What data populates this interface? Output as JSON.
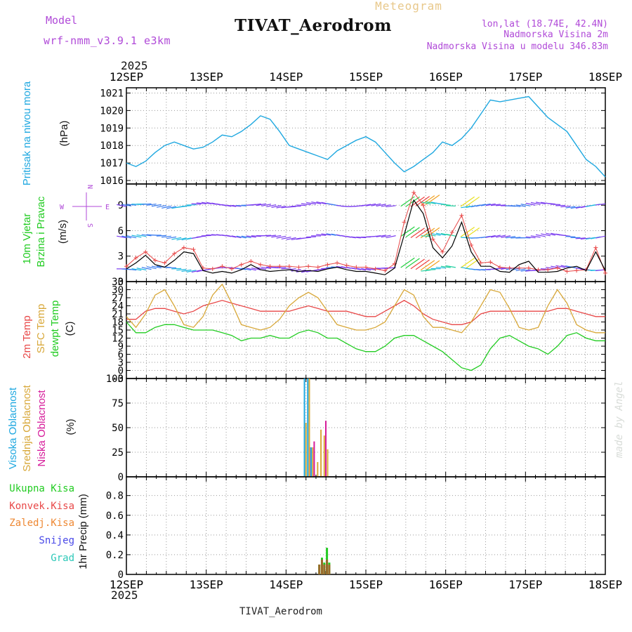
{
  "header": {
    "model_label": "Model",
    "model_name": "wrf-nmm_v3.9.1 e3km",
    "product": "Meteogram",
    "station": "TIVAT_Aerodrom",
    "lonlat": "lon,lat (18.74E, 42.4N)",
    "elevation": "Nadmorska Visina 2m",
    "model_elevation": "Nadmorska Visina u modelu 346.83m",
    "year": "2025",
    "footer_station": "TIVAT_Aerodrom",
    "credit": "made by Angel"
  },
  "colors": {
    "pressure": "#1fa8e0",
    "temp2m": "#e84848",
    "sfc_temp": "#d8a83a",
    "dewpt": "#22cc22",
    "wind_speed": "#000000",
    "gust": "#e84848",
    "cloud_high": "#1fa8e0",
    "cloud_mid": "#d8a83a",
    "cloud_low": "#d61c9a",
    "precip_total": "#22cc22",
    "precip_conv": "#e84848",
    "precip_frozen": "#ee8833",
    "snow": "#4848e8",
    "graupel": "#2cc8b8",
    "model_text": "#b04ad8"
  },
  "chart_data": {
    "type": "line",
    "x_axis": {
      "ticks": [
        "12SEP",
        "13SEP",
        "14SEP",
        "15SEP",
        "16SEP",
        "17SEP",
        "18SEP"
      ],
      "range_hours": [
        0,
        144
      ],
      "step_hours": 3
    },
    "panels": [
      {
        "id": "pressure",
        "ylabel_lines": [
          "Pritisak na nivou mora",
          "(hPa)"
        ],
        "ylim": [
          1015.8,
          1021.3
        ],
        "yticks": [
          1016,
          1017,
          1018,
          1019,
          1020,
          1021
        ],
        "series": [
          {
            "name": "Pritisak na nivou mora",
            "values": [
              1017.0,
              1016.8,
              1017.1,
              1017.6,
              1018.0,
              1018.2,
              1018.0,
              1017.8,
              1017.9,
              1018.2,
              1018.6,
              1018.5,
              1018.8,
              1019.2,
              1019.7,
              1019.5,
              1018.8,
              1018.0,
              1017.8,
              1017.6,
              1017.4,
              1017.2,
              1017.7,
              1018.0,
              1018.3,
              1018.5,
              1018.2,
              1017.6,
              1017.0,
              1016.5,
              1016.8,
              1017.2,
              1017.6,
              1018.2,
              1018.0,
              1018.4,
              1019.0,
              1019.8,
              1020.6,
              1020.5,
              1020.6,
              1020.7,
              1020.8,
              1020.2,
              1019.6,
              1019.2,
              1018.8,
              1018.0,
              1017.2,
              1016.8,
              1016.2
            ]
          }
        ]
      },
      {
        "id": "wind",
        "ylabel_lines": [
          "10m Vjetar",
          "Brzina i Pravac",
          "(m/s)"
        ],
        "compass": [
          "N",
          "E",
          "S",
          "W"
        ],
        "ylim": [
          0,
          11.5
        ],
        "yticks": [
          0,
          3,
          6,
          9
        ],
        "series": [
          {
            "name": "Brzina",
            "values": [
              1.5,
              2.2,
              3.1,
              2.0,
              1.7,
              2.5,
              3.5,
              3.3,
              1.3,
              1.0,
              1.2,
              1.0,
              1.4,
              2.0,
              1.4,
              1.2,
              1.3,
              1.4,
              1.2,
              1.3,
              1.2,
              1.5,
              1.7,
              1.4,
              1.2,
              1.2,
              1.0,
              0.8,
              1.6,
              5.5,
              9.6,
              8.0,
              4.0,
              2.8,
              4.2,
              7.0,
              3.5,
              1.8,
              1.8,
              1.2,
              1.1,
              2.0,
              2.4,
              1.1,
              1.1,
              1.2,
              1.6,
              1.8,
              1.3,
              3.5,
              1.3
            ]
          },
          {
            "name": "Udar",
            "values": [
              1.8,
              2.8,
              3.5,
              2.5,
              2.2,
              3.3,
              4.0,
              3.8,
              1.6,
              1.5,
              1.8,
              1.5,
              2.0,
              2.4,
              2.0,
              1.8,
              1.8,
              1.8,
              1.7,
              1.8,
              1.7,
              2.0,
              2.2,
              1.9,
              1.7,
              1.7,
              1.5,
              1.3,
              2.1,
              7.0,
              10.5,
              9.0,
              5.0,
              3.5,
              5.8,
              7.8,
              4.3,
              2.2,
              2.3,
              1.7,
              1.6,
              1.6,
              1.6,
              1.4,
              1.4,
              1.6,
              1.2,
              1.3,
              1.4,
              4.0,
              1.0
            ]
          }
        ],
        "barb_rows_ms": [
          1.5,
          5.3,
          9.0
        ]
      },
      {
        "id": "temperature",
        "ylabel_lines": [
          "2m Temp",
          "SFC Temp",
          "dewpt Temp",
          "(C)"
        ],
        "ylim": [
          -3,
          33
        ],
        "yticks": [
          -3,
          0,
          3,
          6,
          9,
          12,
          15,
          18,
          21,
          24,
          27,
          30,
          33
        ],
        "series": [
          {
            "name": "2m Temp",
            "values": [
              19,
              19,
              22,
              23,
              23,
              22,
              21,
              22,
              24,
              25,
              26,
              25,
              24,
              23,
              22,
              22,
              22,
              22,
              23,
              24,
              23,
              22,
              22,
              22,
              21,
              20,
              20,
              22,
              24,
              26,
              24,
              21,
              19,
              18,
              17,
              17,
              18,
              21,
              22,
              22,
              22,
              22,
              22,
              22,
              22,
              23,
              23,
              22,
              21,
              20,
              20
            ]
          },
          {
            "name": "SFC Temp",
            "values": [
              20,
              16,
              21,
              28,
              30,
              24,
              17,
              16,
              20,
              28,
              32,
              25,
              17,
              16,
              15,
              16,
              19,
              24,
              27,
              29,
              27,
              22,
              17,
              16,
              15,
              15,
              16,
              18,
              24,
              30,
              28,
              20,
              16,
              16,
              15,
              14,
              18,
              24,
              30,
              29,
              23,
              16,
              15,
              16,
              24,
              30,
              25,
              17,
              15,
              14,
              14
            ]
          },
          {
            "name": "dewpt Temp",
            "values": [
              18,
              14,
              14,
              16,
              17,
              17,
              16,
              15,
              15,
              15,
              14,
              13,
              11,
              12,
              12,
              13,
              12,
              12,
              14,
              15,
              14,
              12,
              12,
              10,
              8,
              7,
              7,
              9,
              12,
              13,
              13,
              11,
              9,
              7,
              4,
              1,
              0,
              2,
              8,
              12,
              13,
              11,
              9,
              8,
              6,
              9,
              13,
              14,
              12,
              11,
              11
            ]
          }
        ]
      },
      {
        "id": "clouds",
        "ylabel_lines": [
          "Visoka Oblacnost",
          "Srednja Oblacnost",
          "Niska Oblacnost",
          "(%)"
        ],
        "ylim": [
          0,
          100
        ],
        "yticks": [
          0,
          25,
          50,
          75,
          100
        ],
        "bar_hours": [
          54.0,
          55.0,
          56.0,
          57.5,
          58.5,
          59.5,
          60.5
        ],
        "series": [
          {
            "name": "Visoka Oblacnost",
            "values": [
              100,
              100,
              30,
              0,
              0,
              0,
              0
            ]
          },
          {
            "name": "Srednja Oblacnost",
            "values": [
              55,
              100,
              30,
              15,
              48,
              42,
              28
            ]
          },
          {
            "name": "Niska Oblacnost",
            "values": [
              0,
              30,
              36,
              0,
              0,
              57,
              0
            ]
          }
        ]
      },
      {
        "id": "precip",
        "ylabel_lines": [
          "1hr Precip (mm)"
        ],
        "legend": [
          "Ukupna Kisa",
          "Konvek.Kisa",
          "Zaledj.Kisa",
          "Snijeg",
          "Grad"
        ],
        "ylim": [
          0,
          0.99
        ],
        "yticks": [
          0,
          0.2,
          0.4,
          0.6,
          0.8
        ],
        "ytick_labels": [
          "0",
          "0.2",
          "0.4",
          "0.6",
          "0.8"
        ],
        "bar_hours": [
          58.0,
          58.8,
          59.5,
          60.3,
          61.0
        ],
        "series": [
          {
            "name": "Ukupna Kisa",
            "values": [
              0.1,
              0.17,
              0.12,
              0.27,
              0.12
            ]
          },
          {
            "name": "Konvek.Kisa",
            "values": [
              0.1,
              0.15,
              0.1,
              0.15,
              0.1
            ]
          }
        ]
      }
    ]
  }
}
